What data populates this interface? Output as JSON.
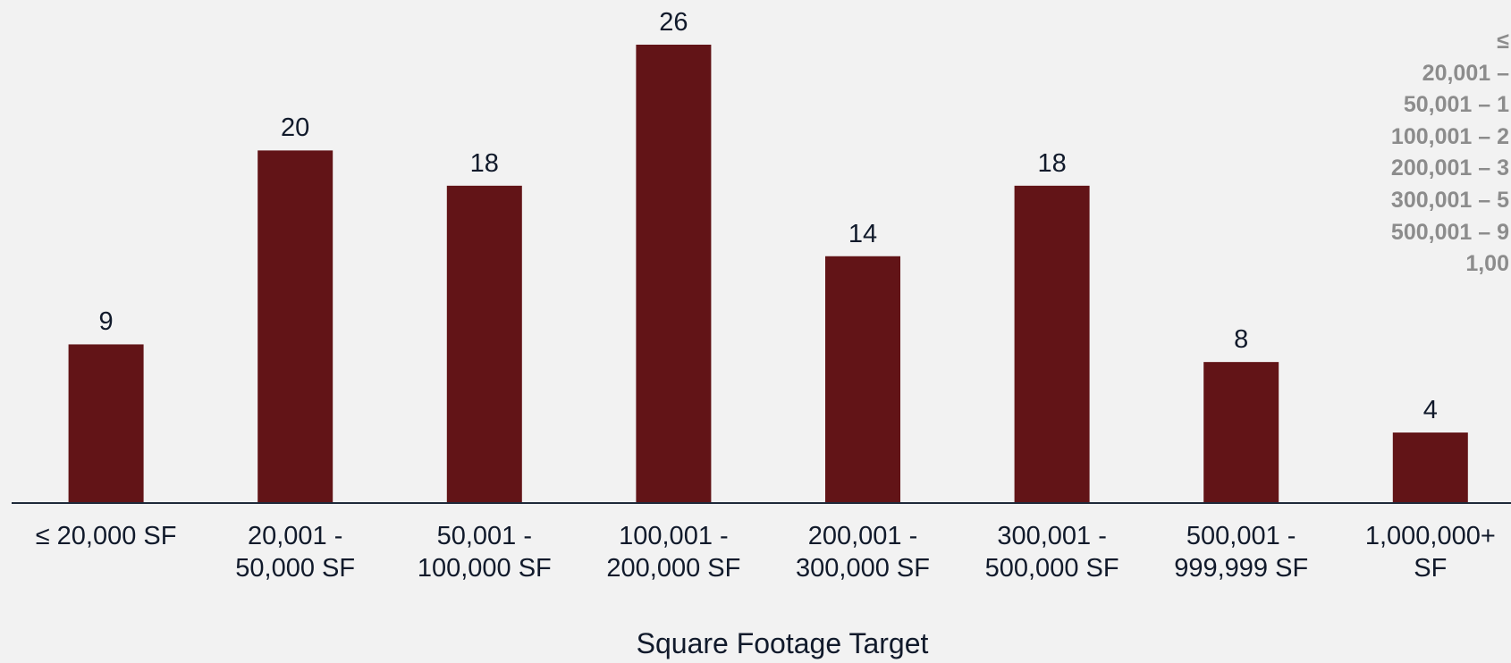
{
  "chart_data": {
    "type": "bar",
    "x_label": "Square Footage Target",
    "categories": [
      "≤ 20,000 SF",
      "20,001 -\n50,000 SF",
      "50,001 -\n100,000 SF",
      "100,001 -\n200,000 SF",
      "200,001 -\n300,000 SF",
      "300,001 -\n500,000 SF",
      "500,001 -\n999,999 SF",
      "1,000,000+\nSF"
    ],
    "values": [
      9,
      20,
      18,
      26,
      14,
      18,
      8,
      4
    ],
    "color": "#621417",
    "ylim": [
      0,
      26
    ],
    "side_labels": [
      "≤",
      "20,001 –",
      "50,001 – 1",
      "100,001 – 2",
      "200,001 – 3",
      "300,001 – 5",
      "500,001 – 9",
      "1,00"
    ]
  }
}
